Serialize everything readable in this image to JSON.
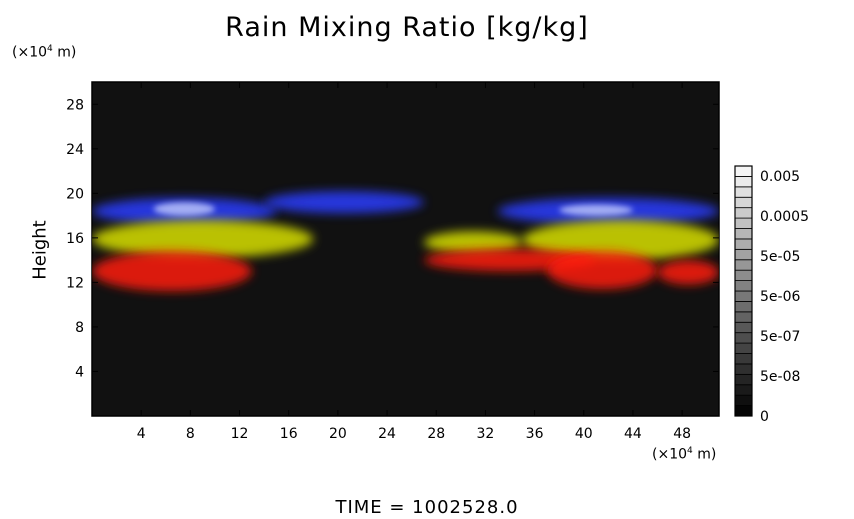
{
  "chart_data": {
    "type": "heatmap",
    "title": "Rain Mixing Ratio [kg/kg]",
    "ylabel": "Height",
    "x_unit": "(×10⁴ m)",
    "y_unit": "(×10⁴ m)",
    "xlim": [
      0,
      51
    ],
    "ylim": [
      0,
      30
    ],
    "x_ticks": [
      4,
      8,
      12,
      16,
      20,
      24,
      28,
      32,
      36,
      40,
      44,
      48
    ],
    "y_ticks": [
      4,
      8,
      12,
      16,
      20,
      24,
      28
    ],
    "colorbar": {
      "labels": [
        "0.005",
        "0.0005",
        "5e-05",
        "5e-06",
        "5e-07",
        "5e-08",
        "0"
      ]
    },
    "footer": "TIME  =  1002528.0",
    "layers": [
      {
        "color": "#2a3cff",
        "y_range": [
          17,
          20
        ],
        "description": "blue band"
      },
      {
        "color": "#d8e000",
        "y_range": [
          14,
          17.5
        ],
        "description": "yellow band"
      },
      {
        "color": "#ff1a10",
        "y_range": [
          11,
          15
        ],
        "description": "red band"
      }
    ]
  }
}
